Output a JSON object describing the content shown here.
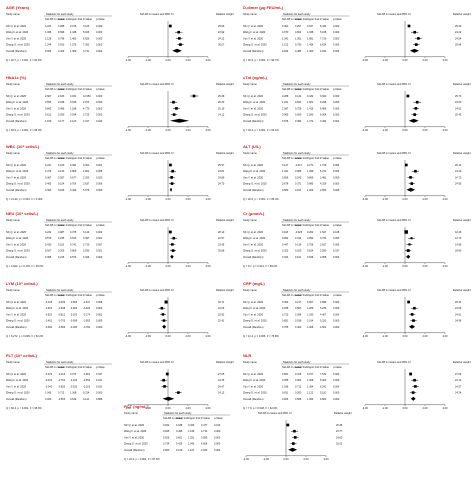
{
  "figure": {
    "col_headers": {
      "study_name": "Study name",
      "statistics": "Statistics for each study",
      "ci_header": "Std diff in means and 95% CI",
      "weight_header": "Relative weight",
      "stat_cols": [
        "Std diff in means",
        "Lower limit",
        "Upper limit",
        "Z-Value",
        "p-Value"
      ]
    },
    "x_ticks": [
      "-4.00",
      "-2.00",
      "0.00",
      "2.00",
      "4.00"
    ]
  },
  "chart_data": [
    {
      "type": "forest",
      "title": "AGE (Years)",
      "studies": [
        {
          "name": "Shi Q. et al. 2020",
          "smd": 0.231,
          "lower": 0.086,
          "upper": 0.376,
          "z": 3.12,
          "p": "0.002",
          "weight": "25.69"
        },
        {
          "name": "Wang F. et al. 2020",
          "smd": 1.066,
          "lower": 0.696,
          "upper": 1.436,
          "z": 5.646,
          "p": "0.000",
          "weight": "23.92"
        },
        {
          "name": "Yan Y. et al. 2020",
          "smd": 1.128,
          "lower": 0.796,
          "upper": 1.46,
          "z": 6.656,
          "p": "0.000",
          "weight": "24.32"
        },
        {
          "name": "Zhang G. et al. 2020",
          "smd": 1.244,
          "lower": 0.913,
          "upper": 1.575,
          "z": 7.362,
          "p": "0.000",
          "weight": "26.07"
        }
      ],
      "overall": {
        "name": "Overall (Random)",
        "smd": 0.909,
        "lower": 0.429,
        "upper": 1.389,
        "z": 3.711,
        "p": "0.000"
      },
      "footer": "Q = 40.7, p < 0.001, I² = 92.6%"
    },
    {
      "type": "forest",
      "title": "HbA1c (%)",
      "studies": [
        {
          "name": "Shi Q. et al. 2020",
          "smd": 2.607,
          "lower": 2.183,
          "upper": 3.031,
          "z": 12.053,
          "p": "0.000",
          "weight": "25.39"
        },
        {
          "name": "Wang F. et al. 2020",
          "smd": 0.552,
          "lower": 0.188,
          "upper": 0.916,
          "z": 2.973,
          "p": "0.003",
          "weight": "25.30"
        },
        {
          "name": "Yan Y. et al. 2020",
          "smd": 0.842,
          "lower": 0.496,
          "upper": 1.188,
          "z": 4.77,
          "p": "0.000",
          "weight": "25.19"
        },
        {
          "name": "Zhang G. et al. 2020",
          "smd": 0.612,
          "lower": 0.29,
          "upper": 0.934,
          "z": 3.725,
          "p": "0.000",
          "weight": "24.12"
        }
      ],
      "overall": {
        "name": "Overall (Random)",
        "smd": 1.15,
        "lower": 0.177,
        "upper": 2.123,
        "z": 2.317,
        "p": "0.020"
      },
      "footer": "Q = 63.6, p < 0.001, I² = 95.3%"
    },
    {
      "type": "forest",
      "title": "WBC (10⁹ cells/L)",
      "studies": [
        {
          "name": "Shi Q. et al. 2020",
          "smd": 0.247,
          "lower": 0.103,
          "upper": 0.391,
          "z": 3.361,
          "p": "0.001",
          "weight": "25.57"
        },
        {
          "name": "Wang F. et al. 2020",
          "smd": 0.476,
          "lower": 0.143,
          "upper": 0.809,
          "z": 2.801,
          "p": "0.005",
          "weight": "24.81"
        },
        {
          "name": "Yan Y. et al. 2020",
          "smd": 0.367,
          "lower": 0.057,
          "upper": 0.677,
          "z": 2.32,
          "p": "0.020",
          "weight": "24.89"
        },
        {
          "name": "Zhang G. et al. 2020",
          "smd": 0.405,
          "lower": 0.104,
          "upper": 0.706,
          "z": 2.637,
          "p": "0.008",
          "weight": "24.73"
        }
      ],
      "overall": {
        "name": "Overall (Random)",
        "smd": 0.303,
        "lower": 0.186,
        "upper": 0.42,
        "z": 5.076,
        "p": "0.000"
      },
      "footer": "Q = 2.143, p = 0.543, I² = 0.000"
    },
    {
      "type": "forest",
      "title": "NEU (10⁹ cells/L)",
      "studies": [
        {
          "name": "Shi Q. et al. 2020",
          "smd": 0.231,
          "lower": 0.087,
          "upper": 0.375,
          "z": 3.144,
          "p": "0.002",
          "weight": "28.10"
        },
        {
          "name": "Wang F. et al. 2020",
          "smd": 0.579,
          "lower": 0.245,
          "upper": 0.913,
          "z": 3.397,
          "p": "0.001",
          "weight": "22.57"
        },
        {
          "name": "Yan Y. et al. 2020",
          "smd": 0.43,
          "lower": 0.119,
          "upper": 0.741,
          "z": 2.71,
          "p": "0.007",
          "weight": "23.45"
        },
        {
          "name": "Zhang G. et al. 2020",
          "smd": 0.507,
          "lower": 0.205,
          "upper": 0.809,
          "z": 3.29,
          "p": "0.001",
          "weight": "25.88"
        }
      ],
      "overall": {
        "name": "Overall (Random)",
        "smd": 0.395,
        "lower": 0.216,
        "upper": 0.574,
        "z": 4.326,
        "p": "0.000"
      },
      "footer": "Q = 4.922, p = 0.178, I² = 39.0%"
    },
    {
      "type": "forest",
      "title": "LYM (10⁹ cells/L)",
      "studies": [
        {
          "name": "Shi Q. et al. 2020",
          "smd": -0.193,
          "lower": -0.336,
          "upper": -0.05,
          "z": -2.647,
          "p": "0.008",
          "weight": "32.71"
        },
        {
          "name": "Wang F. et al. 2020",
          "smd": -0.615,
          "lower": -0.948,
          "upper": -0.282,
          "z": -3.62,
          "p": "0.000",
          "weight": "22.06"
        },
        {
          "name": "Yan Y. et al. 2020",
          "smd": -0.502,
          "lower": -0.812,
          "upper": -0.192,
          "z": -3.174,
          "p": "0.002",
          "weight": "22.82"
        },
        {
          "name": "Zhang G. et al. 2020",
          "smd": -0.401,
          "lower": -0.703,
          "upper": -0.099,
          "z": -2.603,
          "p": "0.009",
          "weight": "22.41"
        }
      ],
      "overall": {
        "name": "Overall (Random)",
        "smd": -0.384,
        "lower": -0.583,
        "upper": -0.185,
        "z": -3.782,
        "p": "0.000"
      },
      "footer": "Q = 6.272, p = 0.099, I² = 52.2%"
    },
    {
      "type": "forest",
      "title": "PLT (10⁹ cells/L)",
      "studies": [
        {
          "name": "Shi Q. et al. 2020",
          "smd": -0.07,
          "lower": -0.213,
          "upper": 0.073,
          "z": -0.961,
          "p": "0.337",
          "weight": "27.05"
        },
        {
          "name": "Wang F. et al. 2020",
          "smd": -0.431,
          "lower": -0.762,
          "upper": -0.1,
          "z": -2.552,
          "p": "0.011",
          "weight": "24.36"
        },
        {
          "name": "Yan Y. et al. 2020",
          "smd": -0.342,
          "lower": -0.652,
          "upper": -0.032,
          "z": -2.163,
          "p": "0.031",
          "weight": "24.47"
        },
        {
          "name": "Zhang G. et al. 2020",
          "smd": 1.04,
          "lower": 0.712,
          "upper": 1.368,
          "z": 6.214,
          "p": "0.000",
          "weight": "24.12"
        }
      ],
      "overall": {
        "name": "Overall (Random)",
        "smd": 0.043,
        "lower": -0.553,
        "upper": 0.639,
        "z": 0.141,
        "p": "0.888"
      },
      "footer": "Q = 60.2, p < 0.001, I² = 95.0%"
    },
    {
      "type": "forest",
      "title": "D-dimer (μg FEU/mL)",
      "studies": [
        {
          "name": "Shi Q. et al. 2020",
          "smd": 0.402,
          "lower": 0.257,
          "upper": 0.547,
          "z": 5.434,
          "p": "0.000",
          "weight": "25.40"
        },
        {
          "name": "Wang F. et al. 2020",
          "smd": 0.97,
          "lower": 0.602,
          "upper": 1.338,
          "z": 5.168,
          "p": "0.000",
          "weight": "24.22"
        },
        {
          "name": "Yan Y. et al. 2020",
          "smd": 1.341,
          "lower": 1.001,
          "upper": 1.681,
          "z": 7.729,
          "p": "0.000",
          "weight": "24.54"
        },
        {
          "name": "Zhang G. et al. 2020",
          "smd": 1.122,
          "lower": 0.79,
          "upper": 1.454,
          "z": 6.624,
          "p": "0.000",
          "weight": "25.84"
        }
      ],
      "overall": {
        "name": "Overall (Random)",
        "smd": 0.944,
        "lower": 0.485,
        "upper": 1.403,
        "z": 4.031,
        "p": "0.000"
      },
      "footer": "Q = 32.3, p < 0.001, I² = 90.7%"
    },
    {
      "type": "forest",
      "title": "cTnI (ng/mL)",
      "studies": [
        {
          "name": "Shi Q. et al. 2020",
          "smd": 0.288,
          "lower": 0.144,
          "upper": 0.432,
          "z": 3.92,
          "p": "0.000",
          "weight": "25.73"
        },
        {
          "name": "Wang F. et al. 2020",
          "smd": 1.221,
          "lower": 0.841,
          "upper": 1.601,
          "z": 6.298,
          "p": "0.000",
          "weight": "24.20"
        },
        {
          "name": "Yan Y. et al. 2020",
          "smd": 1.087,
          "lower": 0.759,
          "upper": 1.415,
          "z": 6.496,
          "p": "0.000",
          "weight": "24.62"
        },
        {
          "name": "Zhang G. et al. 2020",
          "smd": 0.965,
          "lower": 0.65,
          "upper": 1.28,
          "z": 6.004,
          "p": "0.000",
          "weight": "25.45"
        }
      ],
      "overall": {
        "name": "Overall (Random)",
        "smd": 0.876,
        "lower": 0.38,
        "upper": 1.372,
        "z": 3.462,
        "p": "0.001"
      },
      "footer": "Q = 43.2, p < 0.001, I² = 93.1%"
    },
    {
      "type": "forest",
      "title": "ALT (U/L)",
      "studies": [
        {
          "name": "Shi Q. et al. 2020",
          "smd": 0.127,
          "lower": -0.017,
          "upper": 0.271,
          "z": 1.729,
          "p": "0.084",
          "weight": "26.13"
        },
        {
          "name": "Wang F. et al. 2020",
          "smd": 1.041,
          "lower": 0.683,
          "upper": 1.399,
          "z": 5.7,
          "p": "0.000",
          "weight": "24.20"
        },
        {
          "name": "Yan Y. et al. 2020",
          "smd": 0.556,
          "lower": 0.243,
          "upper": 0.869,
          "z": 3.481,
          "p": "0.000",
          "weight": "24.72"
        },
        {
          "name": "Zhang G. et al. 2020",
          "smd": 0.678,
          "lower": 0.371,
          "upper": 0.985,
          "z": 4.329,
          "p": "0.000",
          "weight": "24.95"
        }
      ],
      "overall": {
        "name": "Overall (Random)",
        "smd": 0.58,
        "lower": 0.151,
        "upper": 1.009,
        "z": 2.65,
        "p": "0.008"
      },
      "footer": "Q = 22.0, p < 0.001, I² = 86.4%"
    },
    {
      "type": "forest",
      "title": "Cr (μmol/L)",
      "studies": [
        {
          "name": "Shi Q. et al. 2020",
          "smd": 0.118,
          "lower": -0.026,
          "upper": 0.262,
          "z": 1.607,
          "p": "0.108",
          "weight": "42.49"
        },
        {
          "name": "Wang F. et al. 2020",
          "smd": 0.652,
          "lower": 0.314,
          "upper": 0.99,
          "z": 3.781,
          "p": "0.000",
          "weight": "12.73"
        },
        {
          "name": "Yan Y. et al. 2020",
          "smd": 0.447,
          "lower": 0.136,
          "upper": 0.758,
          "z": 2.817,
          "p": "0.005",
          "weight": "14.98"
        },
        {
          "name": "Zhang G. et al. 2020",
          "smd": 0.322,
          "lower": 0.02,
          "upper": 0.624,
          "z": 2.09,
          "p": "0.037",
          "weight": "29.80"
        }
      ],
      "overall": {
        "name": "Overall (Random)",
        "smd": 0.324,
        "lower": 0.11,
        "upper": 0.538,
        "z": 2.968,
        "p": "0.003"
      },
      "footer": "Q = 9.7, p = 0.021, I² = 69.2%"
    },
    {
      "type": "forest",
      "title": "CRP (mg/L)",
      "studies": [
        {
          "name": "Shi Q. et al. 2020",
          "smd": 0.362,
          "lower": 0.217,
          "upper": 0.507,
          "z": 4.899,
          "p": "0.000",
          "weight": "26.34"
        },
        {
          "name": "Wang F. et al. 2020",
          "smd": 0.938,
          "lower": 0.587,
          "upper": 1.289,
          "z": 5.236,
          "p": "0.000",
          "weight": "24.09"
        },
        {
          "name": "Yan Y. et al. 2020",
          "smd": 0.713,
          "lower": 0.396,
          "upper": 1.03,
          "z": 4.407,
          "p": "0.000",
          "weight": "24.61"
        },
        {
          "name": "Zhang G. et al. 2020",
          "smd": 0.851,
          "lower": 0.538,
          "upper": 1.164,
          "z": 5.331,
          "p": "0.000",
          "weight": "24.96"
        }
      ],
      "overall": {
        "name": "Overall (Random)",
        "smd": 0.705,
        "lower": 0.402,
        "upper": 1.008,
        "z": 4.561,
        "p": "0.000"
      },
      "footer": "Q = 12.4, p = 0.006, I² = 75.8%"
    },
    {
      "type": "forest",
      "title": "NLR",
      "studies": [
        {
          "name": "Shi Q. et al. 2020",
          "smd": 0.561,
          "lower": 0.415,
          "upper": 0.707,
          "z": 7.532,
          "p": "0.000",
          "weight": "27.09"
        },
        {
          "name": "Wang F. et al. 2020",
          "smd": 0.955,
          "lower": 0.602,
          "upper": 1.308,
          "z": 5.3,
          "p": "0.000",
          "weight": "24.10"
        },
        {
          "name": "Yan Y. et al. 2020",
          "smd": 1.038,
          "lower": 0.712,
          "upper": 1.364,
          "z": 6.241,
          "p": "0.000",
          "weight": "24.57"
        },
        {
          "name": "Zhang G. et al. 2020",
          "smd": 0.811,
          "lower": 0.5,
          "upper": 1.122,
          "z": 5.11,
          "p": "0.000",
          "weight": "24.24"
        }
      ],
      "overall": {
        "name": "Overall (Random)",
        "smd": 0.826,
        "lower": 0.588,
        "upper": 1.064,
        "z": 6.802,
        "p": "0.000"
      },
      "footer": "Q = 7.9, p = 0.048, I² = 62.0%"
    },
    {
      "type": "forest",
      "title": "PCT (ng/mL)",
      "studies": [
        {
          "name": "Shi Q. et al. 2020",
          "smd": 0.182,
          "lower": 0.038,
          "upper": 0.326,
          "z": 2.477,
          "p": "0.013",
          "weight": "26.38"
        },
        {
          "name": "Wang F. et al. 2020",
          "smd": 0.845,
          "lower": 0.495,
          "upper": 1.195,
          "z": 4.732,
          "p": "0.000",
          "weight": "23.77"
        },
        {
          "name": "Yan Y. et al. 2020",
          "smd": 0.926,
          "lower": 0.601,
          "upper": 1.251,
          "z": 5.585,
          "p": "0.000",
          "weight": "24.83"
        },
        {
          "name": "Zhang G. et al. 2020",
          "smd": 0.734,
          "lower": 0.425,
          "upper": 1.043,
          "z": 4.656,
          "p": "0.000",
          "weight": "25.02"
        }
      ],
      "overall": {
        "name": "Overall (Random)",
        "smd": 0.66,
        "lower": 0.219,
        "upper": 1.101,
        "z": 2.933,
        "p": "0.003"
      },
      "footer": "Q = 24.2, p < 0.001, I² = 87.6%"
    }
  ]
}
